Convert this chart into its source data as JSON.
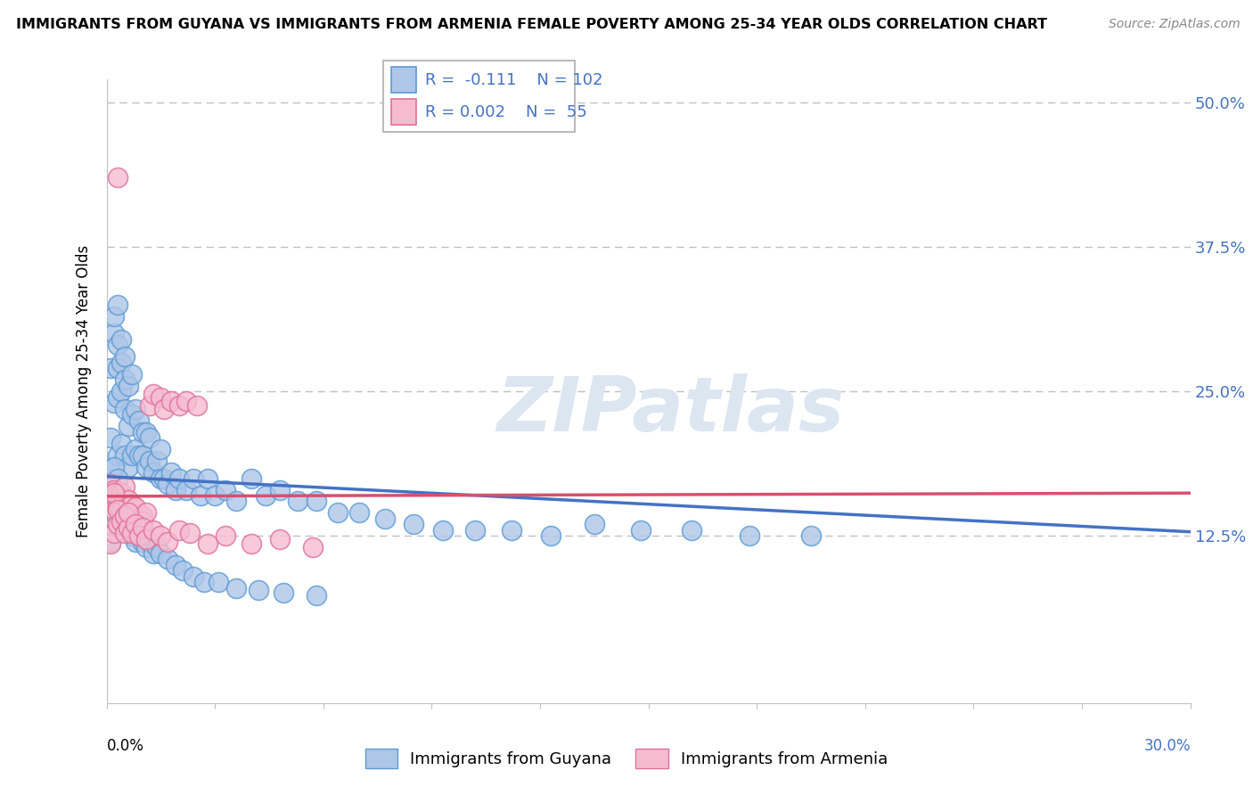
{
  "title": "IMMIGRANTS FROM GUYANA VS IMMIGRANTS FROM ARMENIA FEMALE POVERTY AMONG 25-34 YEAR OLDS CORRELATION CHART",
  "source": "Source: ZipAtlas.com",
  "ylabel": "Female Poverty Among 25-34 Year Olds",
  "xlim": [
    0.0,
    0.3
  ],
  "ylim": [
    -0.02,
    0.52
  ],
  "yticks": [
    0.125,
    0.25,
    0.375,
    0.5
  ],
  "ytick_labels": [
    "12.5%",
    "25.0%",
    "37.5%",
    "50.0%"
  ],
  "guyana_color": "#aec6e8",
  "guyana_edge": "#5b9bd5",
  "armenia_color": "#f5bcd0",
  "armenia_edge": "#e07099",
  "guyana_line_color": "#4472c4",
  "armenia_line_color": "#d94f6e",
  "watermark_color": "#dce6f1",
  "R_guyana": -0.111,
  "N_guyana": 102,
  "R_armenia": 0.002,
  "N_armenia": 55,
  "guyana_x": [
    0.001,
    0.001,
    0.001,
    0.002,
    0.002,
    0.002,
    0.002,
    0.003,
    0.003,
    0.003,
    0.003,
    0.003,
    0.004,
    0.004,
    0.004,
    0.004,
    0.005,
    0.005,
    0.005,
    0.005,
    0.006,
    0.006,
    0.006,
    0.007,
    0.007,
    0.007,
    0.008,
    0.008,
    0.009,
    0.009,
    0.01,
    0.01,
    0.011,
    0.011,
    0.012,
    0.012,
    0.013,
    0.014,
    0.015,
    0.015,
    0.016,
    0.017,
    0.018,
    0.019,
    0.02,
    0.022,
    0.024,
    0.026,
    0.028,
    0.03,
    0.033,
    0.036,
    0.04,
    0.044,
    0.048,
    0.053,
    0.058,
    0.064,
    0.07,
    0.077,
    0.085,
    0.093,
    0.102,
    0.112,
    0.123,
    0.135,
    0.148,
    0.162,
    0.178,
    0.195,
    0.001,
    0.002,
    0.002,
    0.003,
    0.003,
    0.004,
    0.004,
    0.005,
    0.005,
    0.006,
    0.006,
    0.007,
    0.007,
    0.008,
    0.009,
    0.01,
    0.01,
    0.011,
    0.012,
    0.013,
    0.014,
    0.015,
    0.017,
    0.019,
    0.021,
    0.024,
    0.027,
    0.031,
    0.036,
    0.042,
    0.049,
    0.058
  ],
  "guyana_y": [
    0.175,
    0.21,
    0.27,
    0.185,
    0.24,
    0.3,
    0.315,
    0.195,
    0.245,
    0.27,
    0.29,
    0.325,
    0.205,
    0.25,
    0.275,
    0.295,
    0.195,
    0.235,
    0.26,
    0.28,
    0.185,
    0.22,
    0.255,
    0.195,
    0.23,
    0.265,
    0.2,
    0.235,
    0.195,
    0.225,
    0.195,
    0.215,
    0.185,
    0.215,
    0.19,
    0.21,
    0.18,
    0.19,
    0.175,
    0.2,
    0.175,
    0.17,
    0.18,
    0.165,
    0.175,
    0.165,
    0.175,
    0.16,
    0.175,
    0.16,
    0.165,
    0.155,
    0.175,
    0.16,
    0.165,
    0.155,
    0.155,
    0.145,
    0.145,
    0.14,
    0.135,
    0.13,
    0.13,
    0.13,
    0.125,
    0.135,
    0.13,
    0.13,
    0.125,
    0.125,
    0.12,
    0.145,
    0.185,
    0.155,
    0.175,
    0.14,
    0.155,
    0.135,
    0.145,
    0.13,
    0.14,
    0.125,
    0.135,
    0.12,
    0.13,
    0.12,
    0.125,
    0.115,
    0.12,
    0.11,
    0.115,
    0.11,
    0.105,
    0.1,
    0.095,
    0.09,
    0.085,
    0.085,
    0.08,
    0.078,
    0.076,
    0.074
  ],
  "armenia_x": [
    0.001,
    0.001,
    0.002,
    0.002,
    0.003,
    0.003,
    0.003,
    0.004,
    0.004,
    0.005,
    0.005,
    0.005,
    0.006,
    0.006,
    0.007,
    0.007,
    0.008,
    0.008,
    0.009,
    0.01,
    0.01,
    0.011,
    0.012,
    0.013,
    0.015,
    0.016,
    0.018,
    0.02,
    0.022,
    0.025,
    0.001,
    0.002,
    0.002,
    0.003,
    0.003,
    0.004,
    0.005,
    0.005,
    0.006,
    0.006,
    0.007,
    0.008,
    0.009,
    0.01,
    0.011,
    0.013,
    0.015,
    0.017,
    0.02,
    0.023,
    0.028,
    0.033,
    0.04,
    0.048,
    0.057
  ],
  "armenia_y": [
    0.155,
    0.17,
    0.148,
    0.165,
    0.15,
    0.162,
    0.435,
    0.148,
    0.162,
    0.142,
    0.158,
    0.168,
    0.142,
    0.156,
    0.138,
    0.152,
    0.138,
    0.15,
    0.132,
    0.142,
    0.138,
    0.145,
    0.238,
    0.248,
    0.245,
    0.235,
    0.242,
    0.238,
    0.242,
    0.238,
    0.118,
    0.128,
    0.162,
    0.135,
    0.148,
    0.138,
    0.128,
    0.142,
    0.132,
    0.145,
    0.128,
    0.135,
    0.125,
    0.132,
    0.122,
    0.13,
    0.125,
    0.12,
    0.13,
    0.128,
    0.118,
    0.125,
    0.118,
    0.122,
    0.115
  ]
}
